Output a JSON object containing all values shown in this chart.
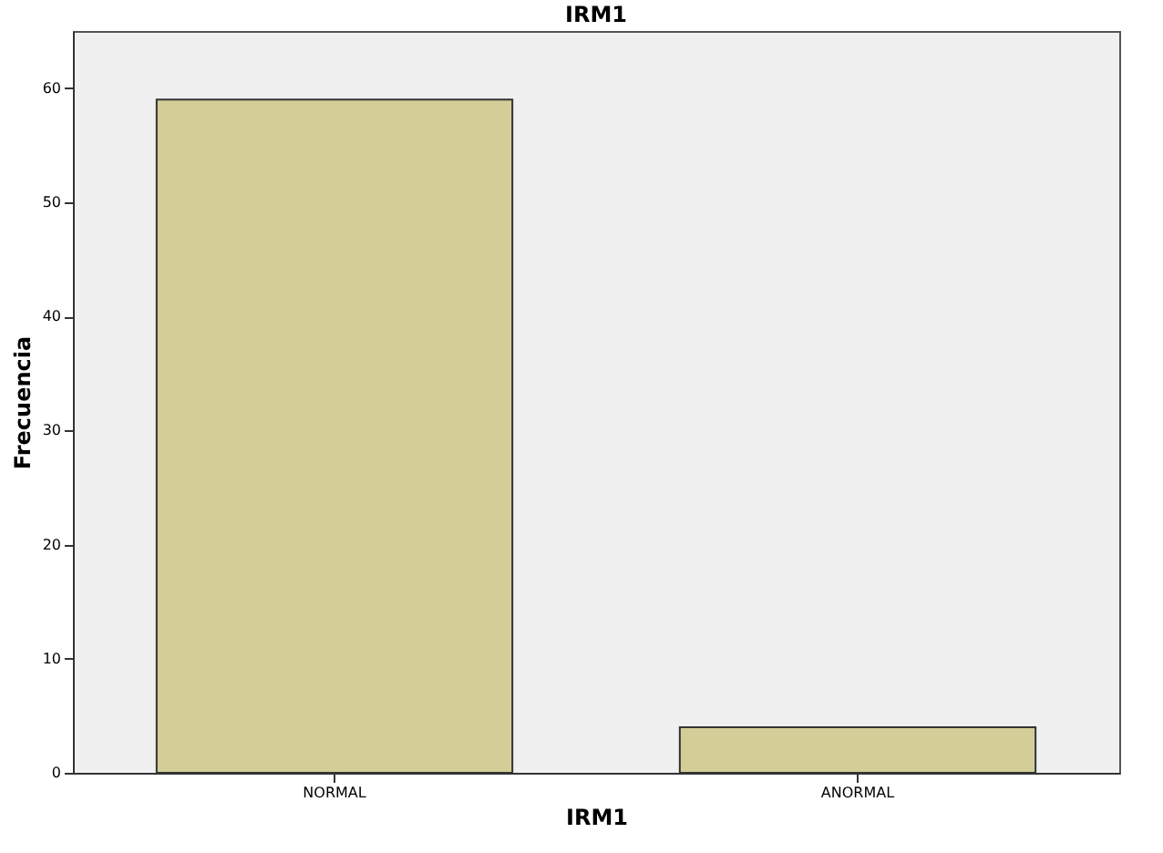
{
  "chart_data": {
    "type": "bar",
    "title": "IRM1",
    "xlabel": "IRM1",
    "ylabel": "Frecuencia",
    "categories": [
      "NORMAL",
      "ANORMAL"
    ],
    "values": [
      59,
      4
    ],
    "color": "#d3ce97",
    "ylim": [
      0,
      65
    ],
    "yticks": [
      0,
      10,
      20,
      30,
      40,
      50,
      60
    ]
  }
}
